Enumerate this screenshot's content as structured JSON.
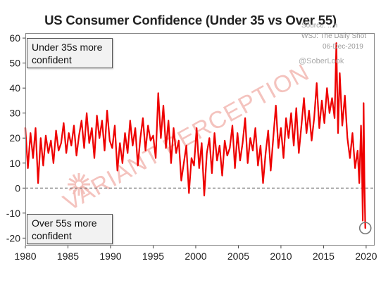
{
  "chart_data": {
    "type": "line",
    "title": "US Consumer Confidence (Under 35 vs Over 55)",
    "xlabel": "",
    "ylabel": "",
    "xlim": [
      1980,
      2021
    ],
    "ylim": [
      -23,
      62
    ],
    "x_ticks": [
      "1980",
      "1985",
      "1990",
      "1995",
      "2000",
      "2005",
      "2010",
      "2015",
      "2020"
    ],
    "y_ticks": [
      "60",
      "50",
      "40",
      "30",
      "20",
      "10",
      "0",
      "-10",
      "-20"
    ],
    "grid": false,
    "zero_line": true,
    "series": [
      {
        "color": "#ee0000",
        "x": [
          1980.0,
          1980.3,
          1980.6,
          1980.9,
          1981.2,
          1981.5,
          1981.8,
          1982.1,
          1982.4,
          1982.7,
          1983.0,
          1983.3,
          1983.6,
          1983.9,
          1984.2,
          1984.5,
          1984.8,
          1985.1,
          1985.4,
          1985.7,
          1986.0,
          1986.3,
          1986.6,
          1986.9,
          1987.2,
          1987.5,
          1987.8,
          1988.1,
          1988.4,
          1988.7,
          1989.0,
          1989.3,
          1989.6,
          1989.9,
          1990.2,
          1990.5,
          1990.8,
          1991.1,
          1991.4,
          1991.7,
          1992.0,
          1992.3,
          1992.6,
          1992.9,
          1993.2,
          1993.5,
          1993.8,
          1994.1,
          1994.4,
          1994.7,
          1995.0,
          1995.3,
          1995.6,
          1995.9,
          1996.2,
          1996.5,
          1996.8,
          1997.1,
          1997.4,
          1997.7,
          1998.0,
          1998.3,
          1998.6,
          1998.9,
          1999.2,
          1999.5,
          1999.8,
          2000.1,
          2000.4,
          2000.7,
          2001.0,
          2001.3,
          2001.6,
          2001.9,
          2002.2,
          2002.5,
          2002.8,
          2003.1,
          2003.4,
          2003.7,
          2004.0,
          2004.3,
          2004.6,
          2004.9,
          2005.2,
          2005.5,
          2005.8,
          2006.1,
          2006.4,
          2006.7,
          2007.0,
          2007.3,
          2007.6,
          2007.9,
          2008.2,
          2008.5,
          2008.8,
          2009.1,
          2009.4,
          2009.7,
          2010.0,
          2010.3,
          2010.6,
          2010.9,
          2011.2,
          2011.5,
          2011.8,
          2012.1,
          2012.4,
          2012.7,
          2013.0,
          2013.3,
          2013.6,
          2013.9,
          2014.2,
          2014.5,
          2014.8,
          2015.1,
          2015.4,
          2015.7,
          2016.0,
          2016.3,
          2016.5,
          2016.7,
          2016.9,
          2017.2,
          2017.5,
          2017.8,
          2018.1,
          2018.4,
          2018.7,
          2019.0,
          2019.2,
          2019.4,
          2019.5,
          2019.6,
          2019.7,
          2019.8,
          2019.9
        ],
        "values": [
          24,
          8,
          22,
          12,
          24,
          2,
          20,
          9,
          21,
          14,
          19,
          10,
          23,
          15,
          18,
          26,
          14,
          22,
          17,
          25,
          13,
          21,
          27,
          16,
          30,
          18,
          24,
          12,
          29,
          20,
          27,
          15,
          31,
          19,
          16,
          25,
          7,
          18,
          10,
          22,
          14,
          27,
          17,
          24,
          9,
          20,
          28,
          15,
          25,
          19,
          21,
          12,
          38,
          20,
          33,
          16,
          27,
          10,
          24,
          14,
          19,
          3,
          10,
          17,
          -2,
          12,
          9,
          24,
          8,
          18,
          -3,
          14,
          20,
          6,
          22,
          11,
          17,
          5,
          19,
          13,
          16,
          25,
          8,
          22,
          11,
          18,
          28,
          10,
          20,
          15,
          24,
          9,
          17,
          2,
          14,
          23,
          7,
          20,
          33,
          16,
          24,
          12,
          28,
          20,
          30,
          17,
          32,
          14,
          25,
          36,
          22,
          31,
          19,
          28,
          42,
          24,
          35,
          26,
          40,
          30,
          36,
          28,
          58,
          22,
          46,
          25,
          37,
          20,
          12,
          22,
          8,
          15,
          2,
          25,
          10,
          -13,
          34,
          3,
          -16
        ]
      }
    ],
    "annotations": [
      {
        "text_lines": [
          "Under 35s more",
          "confident"
        ]
      },
      {
        "text_lines": [
          "Over 55s more",
          "confident"
        ]
      }
    ],
    "highlight_point": {
      "x": 2019.9,
      "y": -16
    }
  },
  "watermark": {
    "text": "VARIANT PERCEPTION",
    "color": "#f3b9b3"
  },
  "credit_lines": [
    "Source: ...n",
    "WSJ: The Daily Shot",
    "06-Dec-2019"
  ],
  "handle": "@SoberLook"
}
